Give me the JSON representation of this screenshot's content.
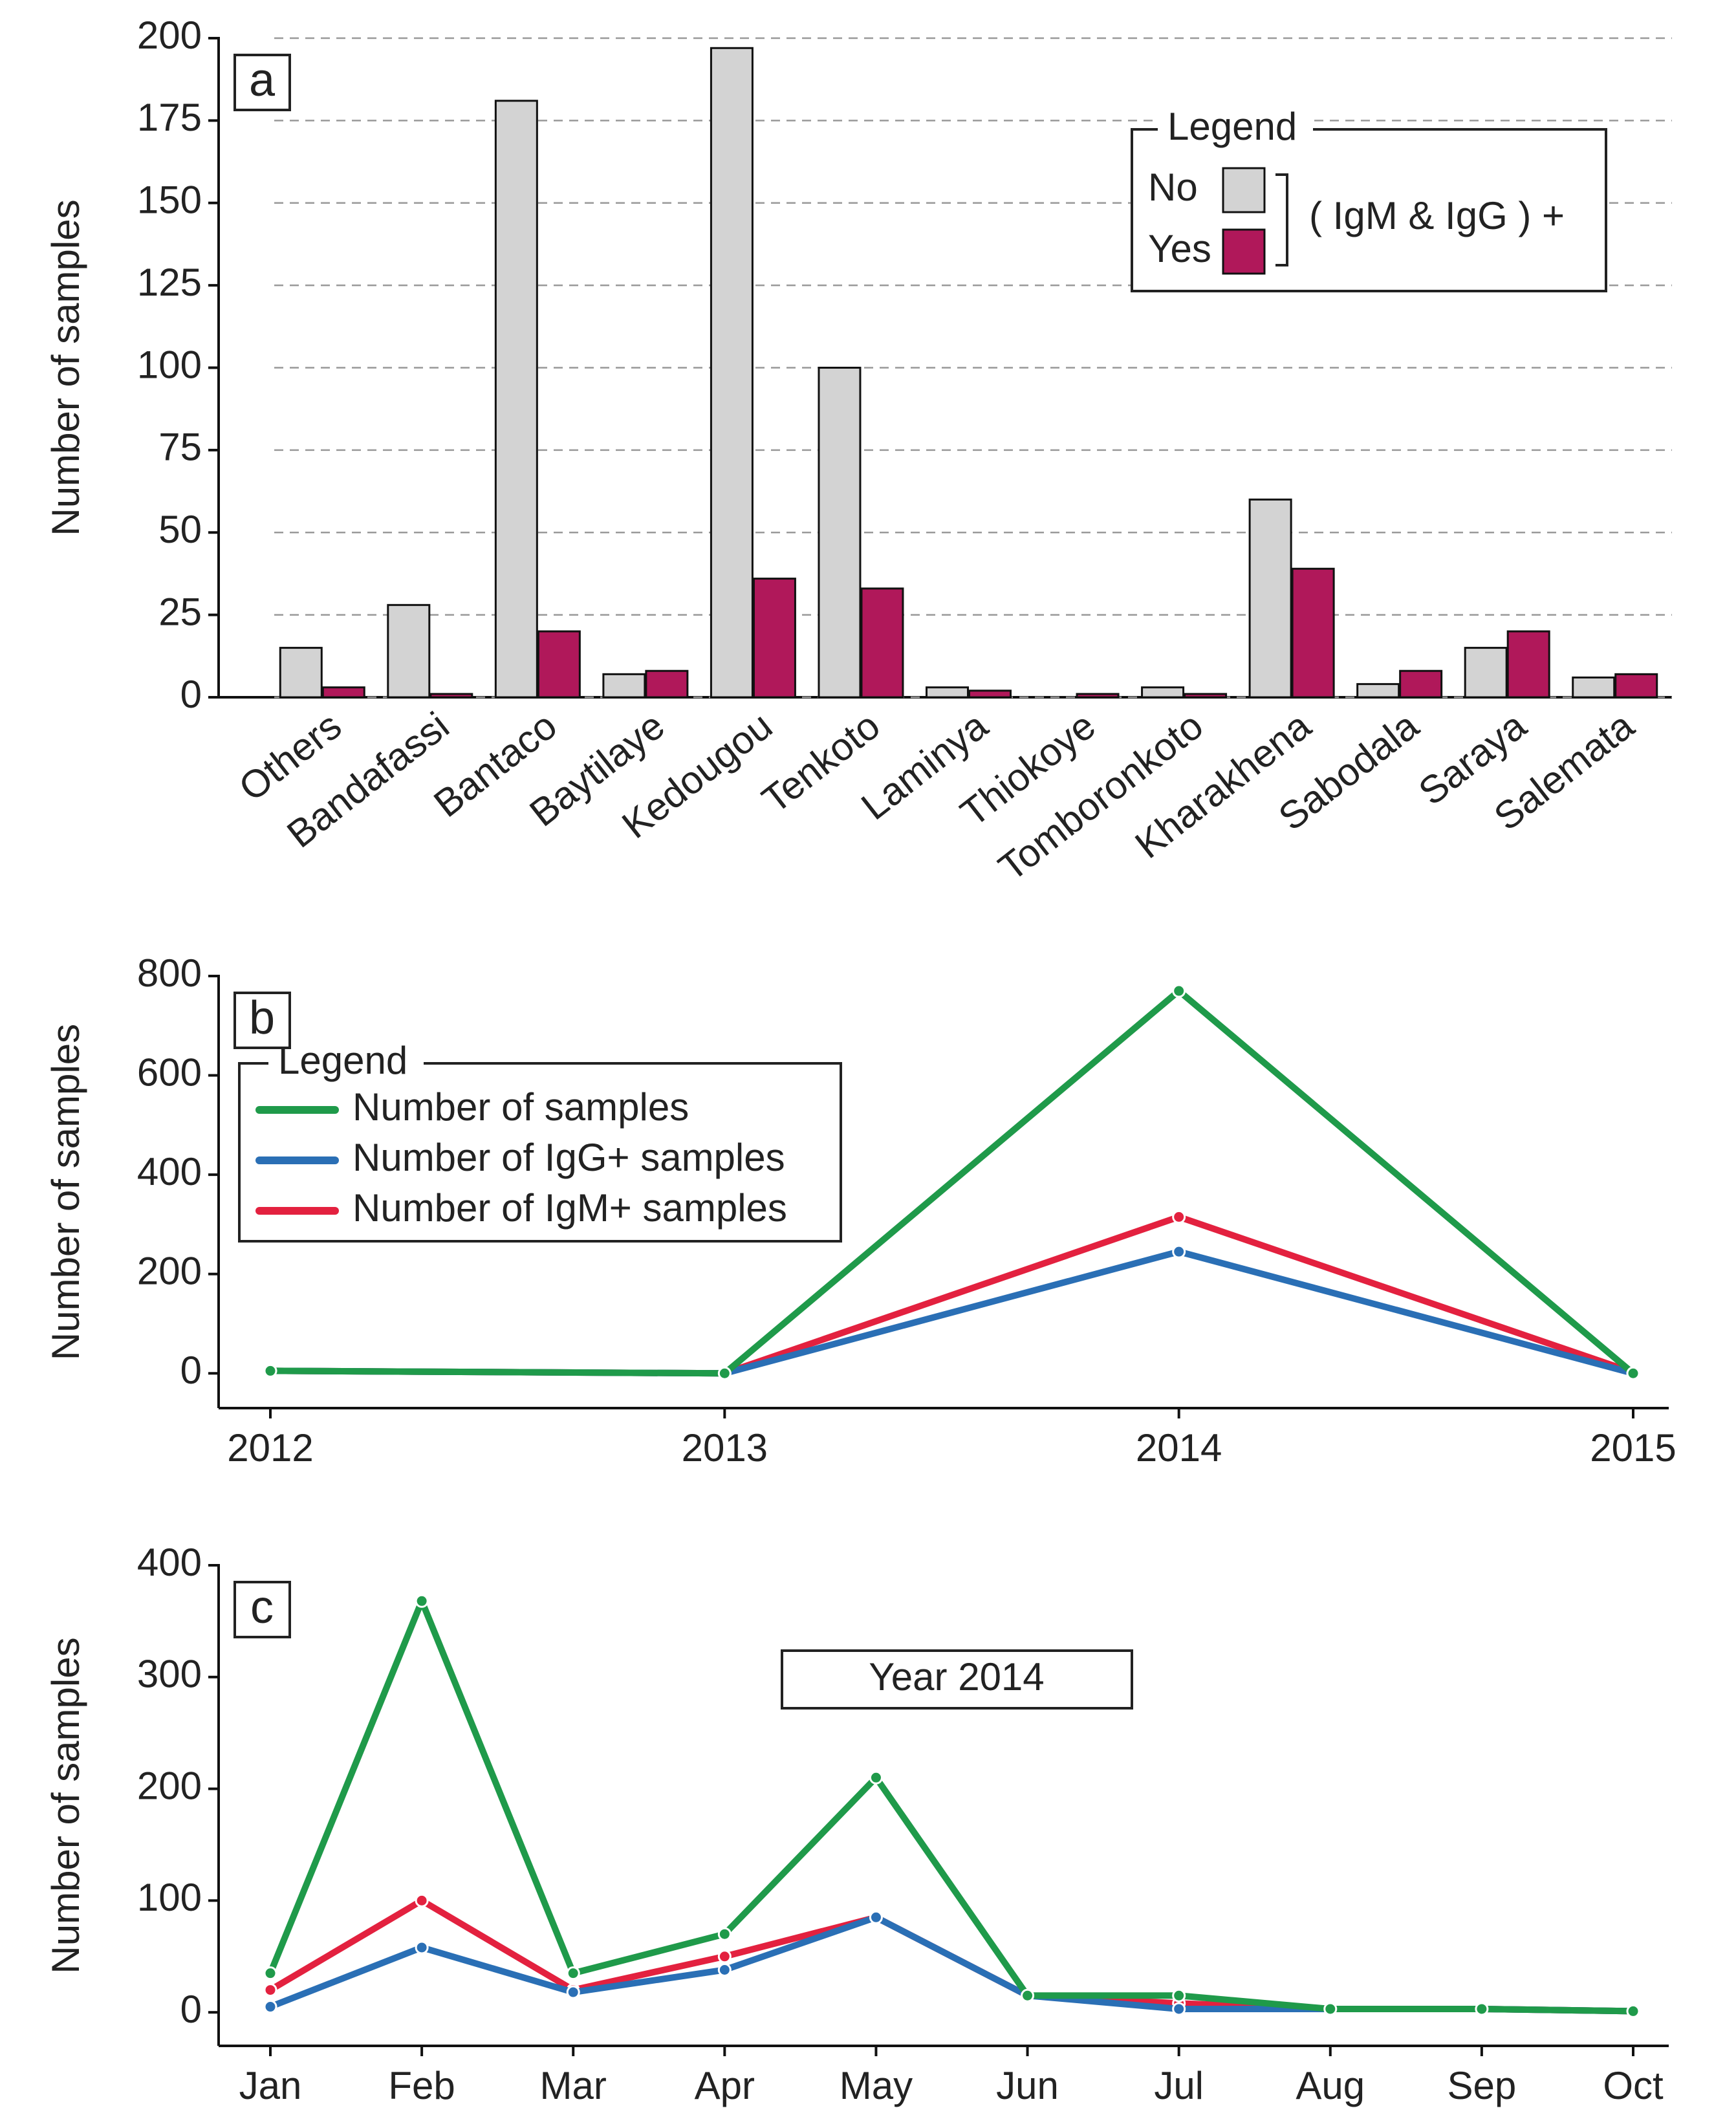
{
  "chart_data": [
    {
      "type": "bar",
      "panel_label": "a",
      "y_label": "Number of samples",
      "categories": [
        "Others",
        "Bandafassi",
        "Bantaco",
        "Baytilaye",
        "Kedougou",
        "Tenkoto",
        "Laminya",
        "Thiokoye",
        "Tomboronkoto",
        "Kharakhena",
        "Sabodala",
        "Saraya",
        "Salemata"
      ],
      "series": [
        {
          "name": "No",
          "color": "#d3d3d3",
          "values": [
            15,
            28,
            181,
            7,
            197,
            100,
            3,
            0,
            3,
            60,
            4,
            15,
            6
          ]
        },
        {
          "name": "Yes",
          "color": "#b0185a",
          "values": [
            3,
            1,
            20,
            8,
            36,
            33,
            2,
            1,
            1,
            39,
            8,
            20,
            7
          ]
        }
      ],
      "ylim": [
        0,
        200
      ],
      "yticks": [
        0,
        25,
        50,
        75,
        100,
        125,
        150,
        175,
        200
      ],
      "grid": true,
      "legend_title": "Legend",
      "legend_note": "( IgM & IgG ) +"
    },
    {
      "type": "line",
      "panel_label": "b",
      "y_label": "Number of samples",
      "x": [
        2012,
        2013,
        2014,
        2015
      ],
      "series": [
        {
          "name": "Number of samples",
          "color": "#1f9a4a",
          "values": [
            5,
            0,
            770,
            0
          ]
        },
        {
          "name": "Number of IgG+ samples",
          "color": "#2a6fb5",
          "values": [
            5,
            0,
            245,
            0
          ]
        },
        {
          "name": "Number of IgM+ samples",
          "color": "#e3213f",
          "values": [
            5,
            0,
            315,
            2
          ]
        }
      ],
      "xlim": [
        2012,
        2015
      ],
      "xticks": [
        2012,
        2013,
        2014,
        2015
      ],
      "ylim": [
        -70,
        800
      ],
      "yticks": [
        0,
        200,
        400,
        600,
        800
      ],
      "legend_title": "Legend"
    },
    {
      "type": "line",
      "panel_label": "c",
      "y_label": "Number of samples",
      "annotation": "Year 2014",
      "categories": [
        "Jan",
        "Feb",
        "Mar",
        "Apr",
        "May",
        "Jun",
        "Jul",
        "Aug",
        "Sep",
        "Oct"
      ],
      "series": [
        {
          "name": "Number of samples",
          "color": "#1f9a4a",
          "values": [
            35,
            368,
            35,
            70,
            210,
            15,
            15,
            3,
            3,
            1
          ]
        },
        {
          "name": "Number of IgG+ samples",
          "color": "#2a6fb5",
          "values": [
            5,
            58,
            18,
            38,
            85,
            15,
            3,
            3,
            3,
            1
          ]
        },
        {
          "name": "Number of IgM+ samples",
          "color": "#e3213f",
          "values": [
            20,
            100,
            20,
            50,
            85,
            15,
            8,
            3,
            3,
            1
          ]
        }
      ],
      "ylim": [
        -30,
        400
      ],
      "yticks": [
        0,
        100,
        200,
        300,
        400
      ]
    }
  ]
}
